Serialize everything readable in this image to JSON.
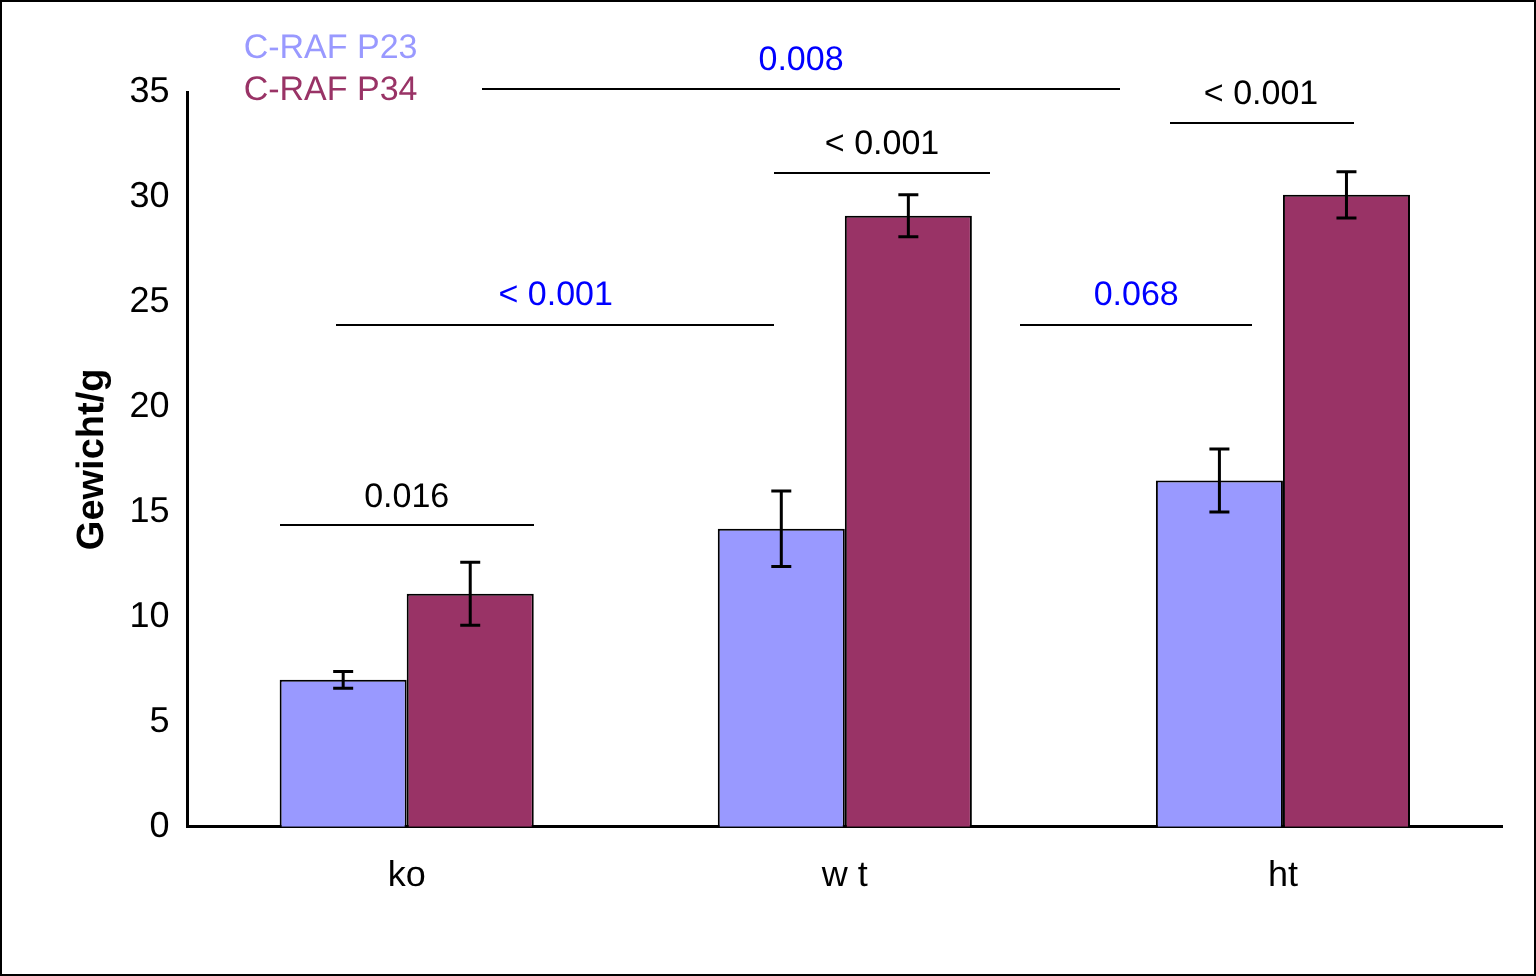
{
  "chart_data": {
    "type": "bar",
    "ylabel": "Gewicht/g",
    "categories": [
      "ko",
      "w t",
      "ht"
    ],
    "series": [
      {
        "name": "C-RAF P23",
        "color": "#9999ff",
        "values": [
          7.0,
          14.2,
          16.5
        ],
        "errors": [
          0.4,
          1.8,
          1.5
        ]
      },
      {
        "name": "C-RAF P34",
        "color": "#993366",
        "values": [
          11.1,
          29.1,
          30.1
        ],
        "errors": [
          1.5,
          1.0,
          1.1
        ]
      }
    ],
    "ylim": [
      0,
      35
    ],
    "yticks": [
      0,
      5,
      10,
      15,
      20,
      25,
      30,
      35
    ],
    "grid": false,
    "legend": "top left",
    "annotations": [
      "0.008",
      "< 0.001",
      "< 0.001",
      "< 0.001",
      "0.068",
      "0.016"
    ]
  }
}
